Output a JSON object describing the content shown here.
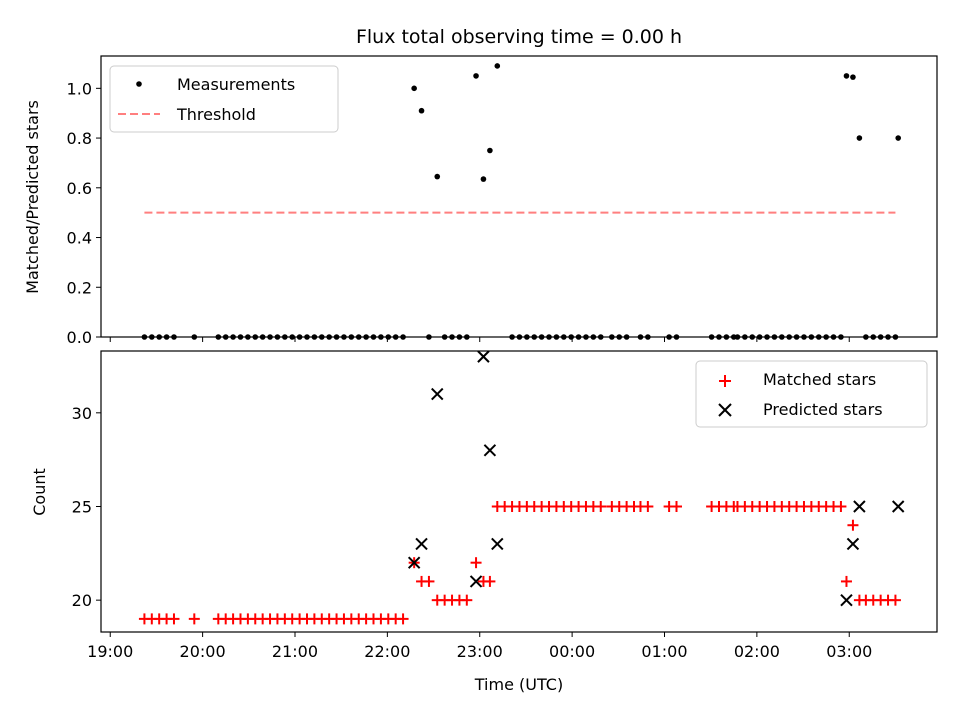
{
  "chart_data": {
    "title": "Flux total observing time = 0.00 h",
    "xlabel": "Time (UTC)",
    "x_tick_labels": [
      "19:00",
      "20:00",
      "21:00",
      "22:00",
      "23:00",
      "00:00",
      "01:00",
      "02:00",
      "03:00"
    ],
    "x_range_hours": [
      18.9,
      27.95
    ],
    "x_tick_hours": [
      19,
      20,
      21,
      22,
      23,
      24,
      25,
      26,
      27
    ],
    "panels": [
      {
        "type": "scatter",
        "ylabel": "Matched/Predicted stars",
        "ylim": [
          0,
          1.13
        ],
        "y_ticks": [
          0.0,
          0.2,
          0.4,
          0.6,
          0.8,
          1.0
        ],
        "y_tick_labels": [
          "0.0",
          "0.2",
          "0.4",
          "0.6",
          "0.8",
          "1.0"
        ],
        "legend": {
          "placement": "upper left",
          "items": [
            {
              "label": "Measurements",
              "marker": "dot",
              "color": "#000000"
            },
            {
              "label": "Threshold",
              "marker": "dashed-line",
              "color": "#ff7f7f"
            }
          ]
        },
        "series": [
          {
            "name": "Measurements",
            "color": "#000000",
            "points": [
              [
                19.37,
                0
              ],
              [
                19.45,
                0
              ],
              [
                19.53,
                0
              ],
              [
                19.61,
                0
              ],
              [
                19.69,
                0
              ],
              [
                19.91,
                0
              ],
              [
                20.17,
                0
              ],
              [
                20.25,
                0
              ],
              [
                20.33,
                0
              ],
              [
                20.41,
                0
              ],
              [
                20.49,
                0
              ],
              [
                20.57,
                0
              ],
              [
                20.65,
                0
              ],
              [
                20.73,
                0
              ],
              [
                20.81,
                0
              ],
              [
                20.89,
                0
              ],
              [
                20.97,
                0
              ],
              [
                21.05,
                0
              ],
              [
                21.13,
                0
              ],
              [
                21.21,
                0
              ],
              [
                21.29,
                0
              ],
              [
                21.37,
                0
              ],
              [
                21.45,
                0
              ],
              [
                21.53,
                0
              ],
              [
                21.61,
                0
              ],
              [
                21.69,
                0
              ],
              [
                21.77,
                0
              ],
              [
                21.85,
                0
              ],
              [
                21.93,
                0
              ],
              [
                22.01,
                0
              ],
              [
                22.09,
                0
              ],
              [
                22.17,
                0
              ],
              [
                22.29,
                1.0
              ],
              [
                22.37,
                0.91
              ],
              [
                22.45,
                0
              ],
              [
                22.54,
                0.645
              ],
              [
                22.62,
                0
              ],
              [
                22.7,
                0
              ],
              [
                22.78,
                0
              ],
              [
                22.86,
                0
              ],
              [
                22.96,
                1.05
              ],
              [
                23.04,
                0.635
              ],
              [
                23.11,
                0.75
              ],
              [
                23.19,
                1.09
              ],
              [
                23.35,
                0
              ],
              [
                23.43,
                0
              ],
              [
                23.51,
                0
              ],
              [
                23.59,
                0
              ],
              [
                23.67,
                0
              ],
              [
                23.75,
                0
              ],
              [
                23.83,
                0
              ],
              [
                23.91,
                0
              ],
              [
                23.99,
                0
              ],
              [
                24.07,
                0
              ],
              [
                24.15,
                0
              ],
              [
                24.23,
                0
              ],
              [
                24.31,
                0
              ],
              [
                24.43,
                0
              ],
              [
                24.51,
                0
              ],
              [
                24.59,
                0
              ],
              [
                24.74,
                0
              ],
              [
                24.82,
                0
              ],
              [
                25.05,
                0
              ],
              [
                25.13,
                0
              ],
              [
                25.51,
                0
              ],
              [
                25.59,
                0
              ],
              [
                25.67,
                0
              ],
              [
                25.75,
                0
              ],
              [
                25.79,
                0
              ],
              [
                25.87,
                0
              ],
              [
                25.95,
                0
              ],
              [
                26.03,
                0
              ],
              [
                26.11,
                0
              ],
              [
                26.19,
                0
              ],
              [
                26.27,
                0
              ],
              [
                26.35,
                0
              ],
              [
                26.43,
                0
              ],
              [
                26.51,
                0
              ],
              [
                26.59,
                0
              ],
              [
                26.67,
                0
              ],
              [
                26.75,
                0
              ],
              [
                26.83,
                0
              ],
              [
                26.91,
                0
              ],
              [
                26.97,
                1.05
              ],
              [
                27.04,
                1.045
              ],
              [
                27.11,
                0.8
              ],
              [
                27.18,
                0
              ],
              [
                27.26,
                0
              ],
              [
                27.34,
                0
              ],
              [
                27.42,
                0
              ],
              [
                27.5,
                0
              ],
              [
                27.53,
                0.8
              ]
            ]
          },
          {
            "name": "Threshold",
            "color": "#ff7f7f",
            "line": [
              [
                19.37,
                0.5
              ],
              [
                27.5,
                0.5
              ]
            ]
          }
        ]
      },
      {
        "type": "scatter",
        "ylabel": "Count",
        "ylim": [
          18.3,
          33.3
        ],
        "y_ticks": [
          20,
          25,
          30
        ],
        "y_tick_labels": [
          "20",
          "25",
          "30"
        ],
        "legend": {
          "placement": "upper right",
          "items": [
            {
              "label": "Matched stars",
              "marker": "plus",
              "color": "#ff0000"
            },
            {
              "label": "Predicted stars",
              "marker": "x",
              "color": "#000000"
            }
          ]
        },
        "series": [
          {
            "name": "Matched stars",
            "color": "#ff0000",
            "points": [
              [
                19.37,
                19
              ],
              [
                19.45,
                19
              ],
              [
                19.53,
                19
              ],
              [
                19.61,
                19
              ],
              [
                19.69,
                19
              ],
              [
                19.91,
                19
              ],
              [
                20.17,
                19
              ],
              [
                20.25,
                19
              ],
              [
                20.33,
                19
              ],
              [
                20.41,
                19
              ],
              [
                20.49,
                19
              ],
              [
                20.57,
                19
              ],
              [
                20.65,
                19
              ],
              [
                20.73,
                19
              ],
              [
                20.81,
                19
              ],
              [
                20.89,
                19
              ],
              [
                20.97,
                19
              ],
              [
                21.05,
                19
              ],
              [
                21.13,
                19
              ],
              [
                21.21,
                19
              ],
              [
                21.29,
                19
              ],
              [
                21.37,
                19
              ],
              [
                21.45,
                19
              ],
              [
                21.53,
                19
              ],
              [
                21.61,
                19
              ],
              [
                21.69,
                19
              ],
              [
                21.77,
                19
              ],
              [
                21.85,
                19
              ],
              [
                21.93,
                19
              ],
              [
                22.01,
                19
              ],
              [
                22.09,
                19
              ],
              [
                22.17,
                19
              ],
              [
                22.29,
                22
              ],
              [
                22.37,
                21
              ],
              [
                22.45,
                21
              ],
              [
                22.54,
                20
              ],
              [
                22.62,
                20
              ],
              [
                22.7,
                20
              ],
              [
                22.78,
                20
              ],
              [
                22.86,
                20
              ],
              [
                22.96,
                22
              ],
              [
                23.04,
                21
              ],
              [
                23.11,
                21
              ],
              [
                23.19,
                25
              ],
              [
                23.27,
                25
              ],
              [
                23.35,
                25
              ],
              [
                23.43,
                25
              ],
              [
                23.51,
                25
              ],
              [
                23.59,
                25
              ],
              [
                23.67,
                25
              ],
              [
                23.75,
                25
              ],
              [
                23.83,
                25
              ],
              [
                23.91,
                25
              ],
              [
                23.99,
                25
              ],
              [
                24.07,
                25
              ],
              [
                24.15,
                25
              ],
              [
                24.23,
                25
              ],
              [
                24.31,
                25
              ],
              [
                24.43,
                25
              ],
              [
                24.51,
                25
              ],
              [
                24.59,
                25
              ],
              [
                24.67,
                25
              ],
              [
                24.74,
                25
              ],
              [
                24.82,
                25
              ],
              [
                25.05,
                25
              ],
              [
                25.13,
                25
              ],
              [
                25.51,
                25
              ],
              [
                25.59,
                25
              ],
              [
                25.67,
                25
              ],
              [
                25.75,
                25
              ],
              [
                25.79,
                25
              ],
              [
                25.87,
                25
              ],
              [
                25.95,
                25
              ],
              [
                26.03,
                25
              ],
              [
                26.11,
                25
              ],
              [
                26.19,
                25
              ],
              [
                26.27,
                25
              ],
              [
                26.35,
                25
              ],
              [
                26.43,
                25
              ],
              [
                26.51,
                25
              ],
              [
                26.59,
                25
              ],
              [
                26.67,
                25
              ],
              [
                26.75,
                25
              ],
              [
                26.83,
                25
              ],
              [
                26.91,
                25
              ],
              [
                26.97,
                21
              ],
              [
                27.04,
                24
              ],
              [
                27.11,
                20
              ],
              [
                27.18,
                20
              ],
              [
                27.26,
                20
              ],
              [
                27.34,
                20
              ],
              [
                27.42,
                20
              ],
              [
                27.5,
                20
              ]
            ]
          },
          {
            "name": "Predicted stars",
            "color": "#000000",
            "points": [
              [
                22.29,
                22
              ],
              [
                22.37,
                23
              ],
              [
                22.54,
                31
              ],
              [
                22.96,
                21
              ],
              [
                23.04,
                33
              ],
              [
                23.11,
                28
              ],
              [
                23.19,
                23
              ],
              [
                26.97,
                20
              ],
              [
                27.04,
                23
              ],
              [
                27.11,
                25
              ],
              [
                27.53,
                25
              ]
            ]
          }
        ]
      }
    ]
  }
}
